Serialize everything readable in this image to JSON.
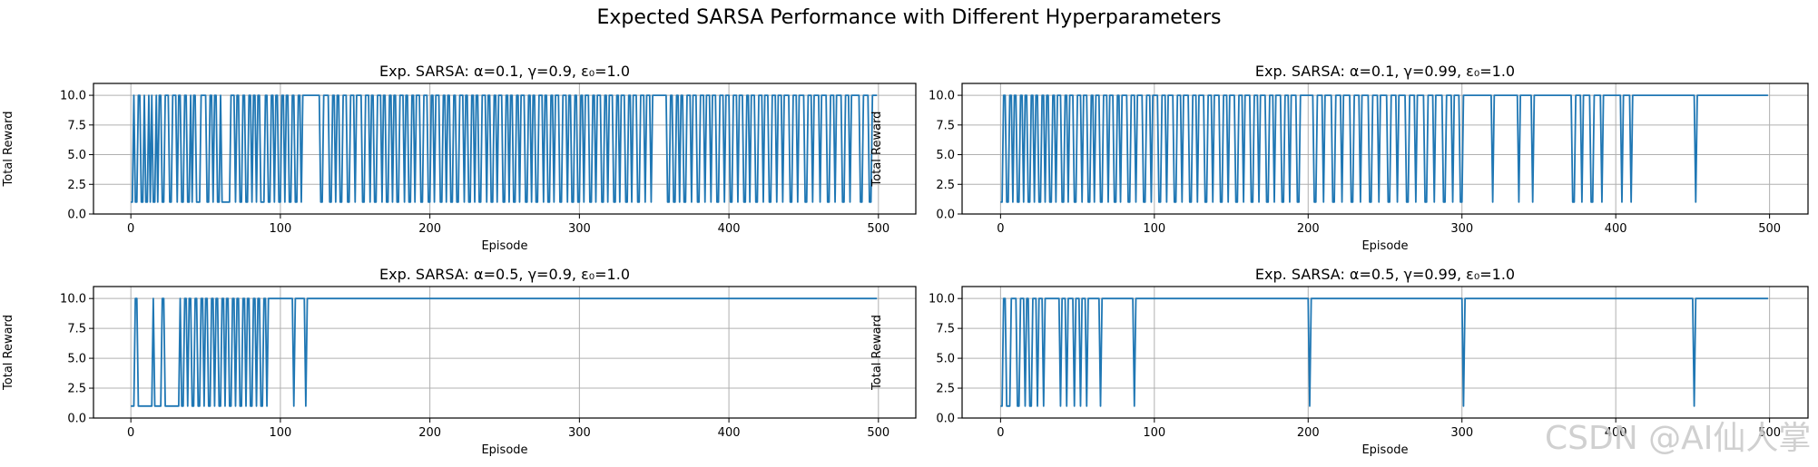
{
  "figure": {
    "suptitle": "Expected SARSA Performance with Different Hyperparameters",
    "watermark": "CSDN @AI仙人掌"
  },
  "colors": {
    "line": "#1f77b4",
    "grid": "#b0b0b0",
    "axis": "#000000",
    "text": "#000000"
  },
  "chart_data": [
    {
      "type": "line",
      "title": "Exp. SARSA: α=0.1, γ=0.9, ε₀=1.0",
      "xlabel": "Episode",
      "ylabel": "Total Reward",
      "xlim": [
        -25,
        525
      ],
      "ylim": [
        0,
        11
      ],
      "xticks": [
        0,
        100,
        200,
        300,
        400,
        500
      ],
      "yticks": [
        0.0,
        2.5,
        5.0,
        7.5,
        10.0
      ],
      "grid": true,
      "series": [
        {
          "name": "Total Reward",
          "x_start": 0,
          "x_end": 499,
          "low": 1,
          "high": 10,
          "low_runs": [
            [
              0,
              1
            ],
            [
              3,
              4
            ],
            [
              7,
              8
            ],
            [
              10,
              11
            ],
            [
              13,
              13
            ],
            [
              15,
              16
            ],
            [
              18,
              18
            ],
            [
              21,
              22
            ],
            [
              26,
              27
            ],
            [
              31,
              31
            ],
            [
              34,
              35
            ],
            [
              38,
              39
            ],
            [
              41,
              41
            ],
            [
              44,
              46
            ],
            [
              51,
              52
            ],
            [
              55,
              55
            ],
            [
              58,
              59
            ],
            [
              61,
              66
            ],
            [
              70,
              70
            ],
            [
              73,
              74
            ],
            [
              77,
              78
            ],
            [
              81,
              81
            ],
            [
              84,
              84
            ],
            [
              87,
              89
            ],
            [
              92,
              93
            ],
            [
              96,
              96
            ],
            [
              99,
              100
            ],
            [
              103,
              103
            ],
            [
              106,
              107
            ],
            [
              110,
              111
            ],
            [
              114,
              114
            ],
            [
              127,
              128
            ],
            [
              133,
              134
            ],
            [
              137,
              137
            ],
            [
              140,
              141
            ],
            [
              145,
              146
            ],
            [
              150,
              150
            ],
            [
              155,
              156
            ],
            [
              160,
              160
            ],
            [
              163,
              164
            ],
            [
              168,
              168
            ],
            [
              171,
              172
            ],
            [
              175,
              175
            ],
            [
              178,
              179
            ],
            [
              183,
              183
            ],
            [
              186,
              187
            ],
            [
              190,
              190
            ],
            [
              194,
              195
            ],
            [
              199,
              200
            ],
            [
              203,
              203
            ],
            [
              207,
              208
            ],
            [
              211,
              211
            ],
            [
              214,
              215
            ],
            [
              218,
              219
            ],
            [
              223,
              223
            ],
            [
              226,
              227
            ],
            [
              230,
              230
            ],
            [
              233,
              234
            ],
            [
              238,
              238
            ],
            [
              241,
              242
            ],
            [
              245,
              245
            ],
            [
              249,
              250
            ],
            [
              253,
              253
            ],
            [
              256,
              257
            ],
            [
              260,
              260
            ],
            [
              264,
              265
            ],
            [
              268,
              268
            ],
            [
              271,
              272
            ],
            [
              276,
              276
            ],
            [
              279,
              280
            ],
            [
              283,
              283
            ],
            [
              287,
              288
            ],
            [
              292,
              292
            ],
            [
              295,
              296
            ],
            [
              299,
              300
            ],
            [
              303,
              303
            ],
            [
              307,
              308
            ],
            [
              311,
              311
            ],
            [
              315,
              316
            ],
            [
              319,
              319
            ],
            [
              323,
              324
            ],
            [
              327,
              327
            ],
            [
              331,
              332
            ],
            [
              335,
              335
            ],
            [
              339,
              340
            ],
            [
              344,
              344
            ],
            [
              348,
              348
            ],
            [
              359,
              360
            ],
            [
              363,
              364
            ],
            [
              367,
              367
            ],
            [
              370,
              371
            ],
            [
              375,
              375
            ],
            [
              379,
              380
            ],
            [
              384,
              384
            ],
            [
              388,
              388
            ],
            [
              392,
              393
            ],
            [
              397,
              397
            ],
            [
              401,
              402
            ],
            [
              406,
              406
            ],
            [
              410,
              411
            ],
            [
              414,
              414
            ],
            [
              418,
              419
            ],
            [
              423,
              423
            ],
            [
              427,
              428
            ],
            [
              432,
              432
            ],
            [
              436,
              436
            ],
            [
              441,
              442
            ],
            [
              446,
              446
            ],
            [
              451,
              452
            ],
            [
              456,
              456
            ],
            [
              461,
              461
            ],
            [
              466,
              467
            ],
            [
              471,
              471
            ],
            [
              476,
              477
            ],
            [
              481,
              481
            ],
            [
              488,
              489
            ],
            [
              494,
              495
            ]
          ]
        }
      ]
    },
    {
      "type": "line",
      "title": "Exp. SARSA: α=0.1, γ=0.99, ε₀=1.0",
      "xlabel": "Episode",
      "ylabel": "Total Reward",
      "xlim": [
        -25,
        525
      ],
      "ylim": [
        0,
        11
      ],
      "xticks": [
        0,
        100,
        200,
        300,
        400,
        500
      ],
      "yticks": [
        0.0,
        2.5,
        5.0,
        7.5,
        10.0
      ],
      "grid": true,
      "series": [
        {
          "name": "Total Reward",
          "x_start": 0,
          "x_end": 499,
          "low": 1,
          "high": 10,
          "low_runs": [
            [
              0,
              1
            ],
            [
              4,
              5
            ],
            [
              8,
              8
            ],
            [
              11,
              12
            ],
            [
              15,
              15
            ],
            [
              18,
              19
            ],
            [
              22,
              22
            ],
            [
              25,
              26
            ],
            [
              29,
              29
            ],
            [
              32,
              33
            ],
            [
              36,
              36
            ],
            [
              40,
              41
            ],
            [
              44,
              44
            ],
            [
              48,
              49
            ],
            [
              53,
              53
            ],
            [
              57,
              58
            ],
            [
              61,
              61
            ],
            [
              65,
              66
            ],
            [
              70,
              70
            ],
            [
              74,
              75
            ],
            [
              78,
              78
            ],
            [
              83,
              84
            ],
            [
              88,
              88
            ],
            [
              93,
              94
            ],
            [
              98,
              98
            ],
            [
              103,
              104
            ],
            [
              108,
              108
            ],
            [
              113,
              114
            ],
            [
              118,
              118
            ],
            [
              123,
              124
            ],
            [
              128,
              128
            ],
            [
              133,
              134
            ],
            [
              138,
              138
            ],
            [
              143,
              144
            ],
            [
              148,
              148
            ],
            [
              153,
              154
            ],
            [
              158,
              158
            ],
            [
              163,
              164
            ],
            [
              168,
              168
            ],
            [
              173,
              174
            ],
            [
              178,
              178
            ],
            [
              183,
              184
            ],
            [
              188,
              188
            ],
            [
              193,
              194
            ],
            [
              204,
              205
            ],
            [
              210,
              210
            ],
            [
              216,
              217
            ],
            [
              222,
              222
            ],
            [
              228,
              229
            ],
            [
              234,
              234
            ],
            [
              240,
              241
            ],
            [
              246,
              246
            ],
            [
              252,
              253
            ],
            [
              258,
              258
            ],
            [
              264,
              265
            ],
            [
              270,
              270
            ],
            [
              276,
              277
            ],
            [
              282,
              282
            ],
            [
              288,
              289
            ],
            [
              294,
              294
            ],
            [
              299,
              300
            ],
            [
              320,
              320
            ],
            [
              337,
              337
            ],
            [
              346,
              346
            ],
            [
              372,
              373
            ],
            [
              378,
              378
            ],
            [
              384,
              385
            ],
            [
              391,
              391
            ],
            [
              404,
              404
            ],
            [
              410,
              410
            ],
            [
              452,
              452
            ]
          ]
        }
      ]
    },
    {
      "type": "line",
      "title": "Exp. SARSA: α=0.5, γ=0.9, ε₀=1.0",
      "xlabel": "Episode",
      "ylabel": "Total Reward",
      "xlim": [
        -25,
        525
      ],
      "ylim": [
        0,
        11
      ],
      "xticks": [
        0,
        100,
        200,
        300,
        400,
        500
      ],
      "yticks": [
        0.0,
        2.5,
        5.0,
        7.5,
        10.0
      ],
      "grid": true,
      "series": [
        {
          "name": "Total Reward",
          "x_start": 0,
          "x_end": 499,
          "low": 1,
          "high": 10,
          "low_runs": [
            [
              0,
              2
            ],
            [
              5,
              14
            ],
            [
              16,
              20
            ],
            [
              23,
              32
            ],
            [
              34,
              35
            ],
            [
              38,
              38
            ],
            [
              41,
              42
            ],
            [
              45,
              46
            ],
            [
              49,
              49
            ],
            [
              52,
              53
            ],
            [
              56,
              56
            ],
            [
              59,
              60
            ],
            [
              63,
              63
            ],
            [
              66,
              67
            ],
            [
              70,
              70
            ],
            [
              73,
              74
            ],
            [
              77,
              77
            ],
            [
              80,
              81
            ],
            [
              84,
              84
            ],
            [
              87,
              88
            ],
            [
              91,
              91
            ],
            [
              109,
              109
            ],
            [
              117,
              117
            ]
          ]
        }
      ]
    },
    {
      "type": "line",
      "title": "Exp. SARSA: α=0.5, γ=0.99, ε₀=1.0",
      "xlabel": "Episode",
      "ylabel": "Total Reward",
      "xlim": [
        -25,
        525
      ],
      "ylim": [
        0,
        11
      ],
      "xticks": [
        0,
        100,
        200,
        300,
        400,
        500
      ],
      "yticks": [
        0.0,
        2.5,
        5.0,
        7.5,
        10.0
      ],
      "grid": true,
      "series": [
        {
          "name": "Total Reward",
          "x_start": 0,
          "x_end": 499,
          "low": 1,
          "high": 10,
          "low_runs": [
            [
              0,
              1
            ],
            [
              4,
              6
            ],
            [
              11,
              12
            ],
            [
              16,
              16
            ],
            [
              19,
              20
            ],
            [
              24,
              24
            ],
            [
              28,
              28
            ],
            [
              39,
              39
            ],
            [
              43,
              43
            ],
            [
              48,
              48
            ],
            [
              52,
              52
            ],
            [
              56,
              56
            ],
            [
              65,
              65
            ],
            [
              87,
              87
            ],
            [
              201,
              201
            ],
            [
              301,
              301
            ],
            [
              451,
              451
            ]
          ]
        }
      ]
    }
  ]
}
